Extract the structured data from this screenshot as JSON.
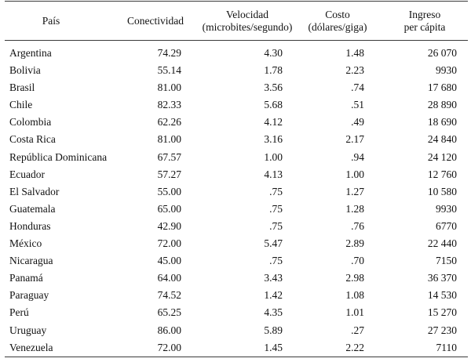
{
  "table": {
    "headers": {
      "pais": "País",
      "conectividad": "Conectividad",
      "velocidad_line1": "Velocidad",
      "velocidad_line2": "(microbites/segundo)",
      "costo_line1": "Costo",
      "costo_line2": "(dólares/giga)",
      "ingreso_line1": "Ingreso",
      "ingreso_line2": "per cápita"
    },
    "rows": [
      {
        "pais": "Argentina",
        "conectividad": "74.29",
        "velocidad": "4.30",
        "costo": "1.48",
        "ingreso": "26 070"
      },
      {
        "pais": "Bolivia",
        "conectividad": "55.14",
        "velocidad": "1.78",
        "costo": "2.23",
        "ingreso": "9930"
      },
      {
        "pais": "Brasil",
        "conectividad": "81.00",
        "velocidad": "3.56",
        "costo": ".74",
        "ingreso": "17 680"
      },
      {
        "pais": "Chile",
        "conectividad": "82.33",
        "velocidad": "5.68",
        "costo": ".51",
        "ingreso": "28 890"
      },
      {
        "pais": "Colombia",
        "conectividad": "62.26",
        "velocidad": "4.12",
        "costo": ".49",
        "ingreso": "18 690"
      },
      {
        "pais": "Costa Rica",
        "conectividad": "81.00",
        "velocidad": "3.16",
        "costo": "2.17",
        "ingreso": "24 840"
      },
      {
        "pais": "República Dominicana",
        "conectividad": "67.57",
        "velocidad": "1.00",
        "costo": ".94",
        "ingreso": "24 120"
      },
      {
        "pais": "Ecuador",
        "conectividad": "57.27",
        "velocidad": "4.13",
        "costo": "1.00",
        "ingreso": "12 760"
      },
      {
        "pais": "El Salvador",
        "conectividad": "55.00",
        "velocidad": ".75",
        "costo": "1.27",
        "ingreso": "10 580"
      },
      {
        "pais": "Guatemala",
        "conectividad": "65.00",
        "velocidad": ".75",
        "costo": "1.28",
        "ingreso": "9930"
      },
      {
        "pais": "Honduras",
        "conectividad": "42.90",
        "velocidad": ".75",
        "costo": ".76",
        "ingreso": "6770"
      },
      {
        "pais": "México",
        "conectividad": "72.00",
        "velocidad": "5.47",
        "costo": "2.89",
        "ingreso": "22 440"
      },
      {
        "pais": "Nicaragua",
        "conectividad": "45.00",
        "velocidad": ".75",
        "costo": ".70",
        "ingreso": "7150"
      },
      {
        "pais": "Panamá",
        "conectividad": "64.00",
        "velocidad": "3.43",
        "costo": "2.98",
        "ingreso": "36 370"
      },
      {
        "pais": "Paraguay",
        "conectividad": "74.52",
        "velocidad": "1.42",
        "costo": "1.08",
        "ingreso": "14 530"
      },
      {
        "pais": "Perú",
        "conectividad": "65.25",
        "velocidad": "4.35",
        "costo": "1.01",
        "ingreso": "15 270"
      },
      {
        "pais": "Uruguay",
        "conectividad": "86.00",
        "velocidad": "5.89",
        "costo": ".27",
        "ingreso": "27 230"
      },
      {
        "pais": "Venezuela",
        "conectividad": "72.00",
        "velocidad": "1.45",
        "costo": "2.22",
        "ingreso": "7110"
      }
    ]
  }
}
